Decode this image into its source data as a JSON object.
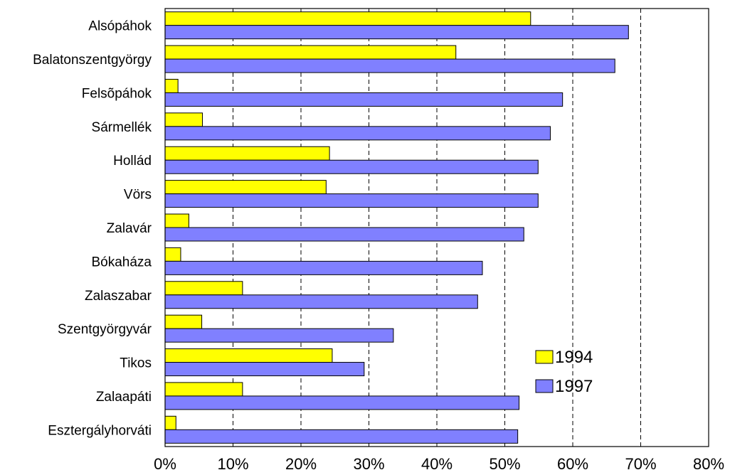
{
  "chart_data": {
    "type": "bar",
    "orientation": "horizontal",
    "categories": [
      "Alsópáhok",
      "Balatonszentgyörgy",
      "Felsõpáhok",
      "Sármellék",
      "Hollád",
      "Vörs",
      "Zalavár",
      "Bókaháza",
      "Zalaszabar",
      "Szentgyörgyvár",
      "Tikos",
      "Zalaapáti",
      "Esztergályhorváti"
    ],
    "series": [
      {
        "name": "1994",
        "color": "#ffff00",
        "values": [
          53.8,
          42.8,
          1.9,
          5.5,
          24.2,
          23.7,
          3.5,
          2.3,
          11.4,
          5.4,
          24.6,
          11.4,
          1.6
        ]
      },
      {
        "name": "1997",
        "color": "#8080ff",
        "values": [
          68.2,
          66.2,
          58.5,
          56.7,
          54.9,
          54.9,
          52.8,
          46.7,
          46.0,
          33.6,
          29.3,
          52.1,
          51.9
        ]
      }
    ],
    "x_range": [
      0,
      80
    ],
    "x_ticks": [
      "0%",
      "10%",
      "20%",
      "30%",
      "40%",
      "50%",
      "60%",
      "70%",
      "80%"
    ],
    "x_tick_values": [
      0,
      10,
      20,
      30,
      40,
      50,
      60,
      70,
      80
    ],
    "gridlines": "vertical dashed",
    "legend_position": "bottom-right inside plot",
    "title": "",
    "xlabel": "",
    "ylabel": ""
  }
}
